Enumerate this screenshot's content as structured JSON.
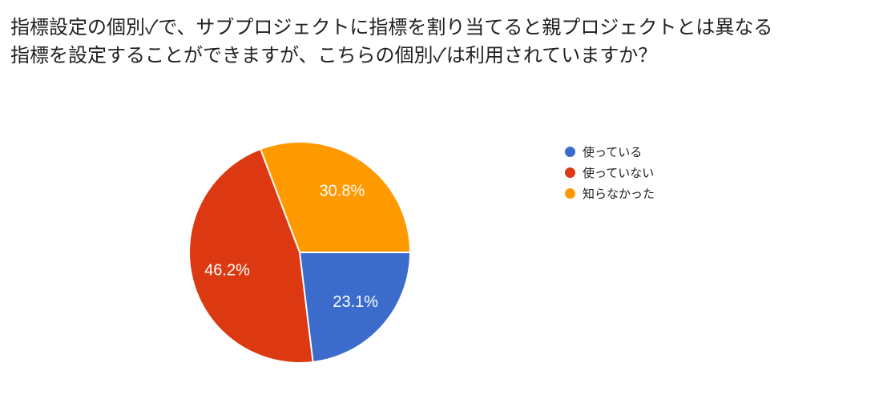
{
  "question": {
    "title_line1": "指標設定の個別✓で、サブプロジェクトに指標を割り当てると親プロジェクトとは異なる",
    "title_line2": "指標を設定することができますが、こちらの個別✓は利用されていますか？"
  },
  "legend": {
    "items": [
      {
        "label": "使っている",
        "color": "#3B6CCB"
      },
      {
        "label": "使っていない",
        "color": "#DC3912"
      },
      {
        "label": "知らなかった",
        "color": "#FF9900"
      }
    ]
  },
  "chart_data": {
    "type": "pie",
    "title": "指標設定の個別✓で、サブプロジェクトに指標を割り当てると親プロジェクトとは異なる指標を設定することができますが、こちらの個別✓は利用されていますか？",
    "categories": [
      "使っている",
      "使っていない",
      "知らなかった"
    ],
    "values": [
      23.1,
      46.2,
      30.8
    ],
    "value_labels": [
      "23.1%",
      "46.2%",
      "30.8%"
    ],
    "colors": [
      "#3B6CCB",
      "#DC3912",
      "#FF9900"
    ],
    "start_angle_deg": 0,
    "direction": "clockwise",
    "legend_position": "right",
    "slice_label_color": "#FFFFFF",
    "slice_separator_color": "#FFFFFF",
    "background_color": "#FFFFFF",
    "text_color": "#212121"
  }
}
